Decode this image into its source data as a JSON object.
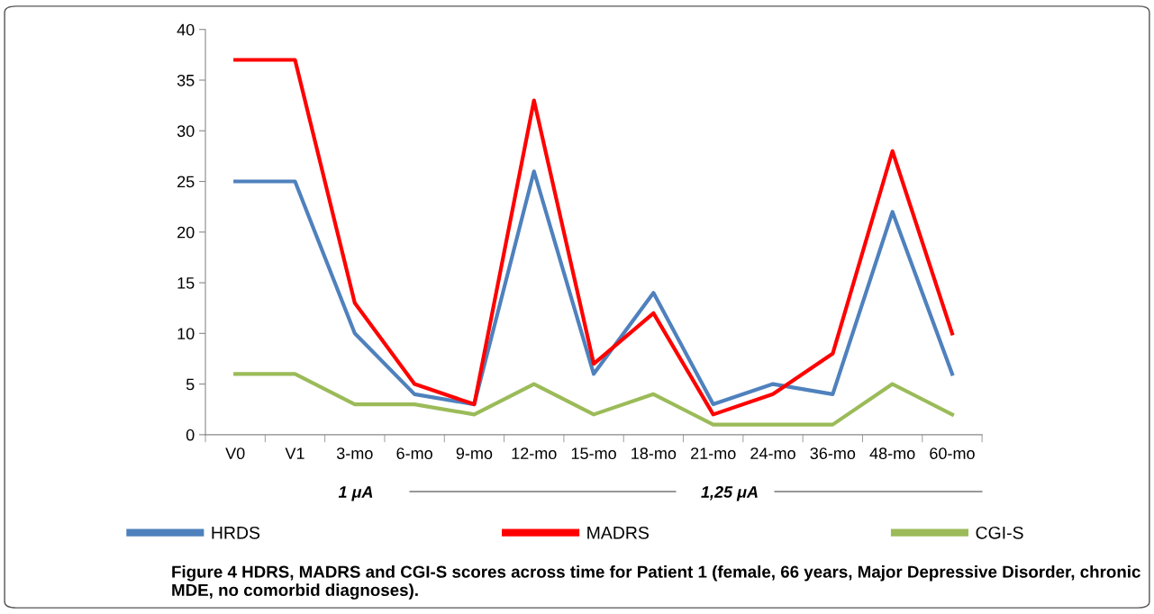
{
  "chart_data": {
    "type": "line",
    "categories": [
      "V0",
      "V1",
      "3-mo",
      "6-mo",
      "9-mo",
      "12-mo",
      "15-mo",
      "18-mo",
      "21-mo",
      "24-mo",
      "36-mo",
      "48-mo",
      "60-mo"
    ],
    "series": [
      {
        "name": "HRDS",
        "color": "#4f81bd",
        "values": [
          25,
          25,
          10,
          4,
          3,
          26,
          6,
          14,
          3,
          5,
          4,
          22,
          6
        ]
      },
      {
        "name": "MADRS",
        "color": "#ff0000",
        "values": [
          37,
          37,
          13,
          5,
          3,
          33,
          7,
          12,
          2,
          4,
          8,
          28,
          10
        ]
      },
      {
        "name": "CGI-S",
        "color": "#9bbb59",
        "values": [
          6,
          6,
          3,
          3,
          2,
          5,
          2,
          4,
          1,
          1,
          1,
          5,
          2
        ]
      }
    ],
    "ylim": [
      0,
      40
    ],
    "yticks": [
      0,
      5,
      10,
      15,
      20,
      25,
      30,
      35,
      40
    ],
    "grid": false,
    "legend": "bottom",
    "marker": "none",
    "line_style": "solid",
    "annotations": [
      "1 μA",
      "1,25 μA",
      "Figure 4 HDRS, MADRS and CGI-S scores across time for Patient 1 (female, 66 years, Major Depressive Disorder, chronic MDE, no comorbid diagnoses)."
    ]
  }
}
